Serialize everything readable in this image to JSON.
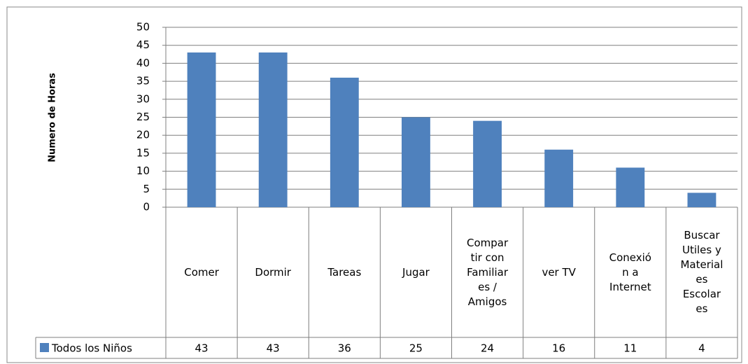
{
  "chart_data": {
    "type": "bar",
    "y_label": "Numero de Horas",
    "categories": [
      "Comer",
      "Dormir",
      "Tareas",
      "Jugar",
      "Compartir con Familiares / Amigos",
      "ver TV",
      "Conexión a Internet",
      "Buscar Utiles y Materiales Escolares"
    ],
    "series": [
      {
        "name": "Todos los Niños",
        "color": "#4f81bd",
        "values": [
          43,
          43,
          36,
          25,
          24,
          16,
          11,
          4
        ]
      }
    ],
    "ylim": [
      0,
      50
    ],
    "yticks": [
      0,
      5,
      10,
      15,
      20,
      25,
      30,
      35,
      40,
      45,
      50
    ],
    "grid": true,
    "data_table": true
  }
}
